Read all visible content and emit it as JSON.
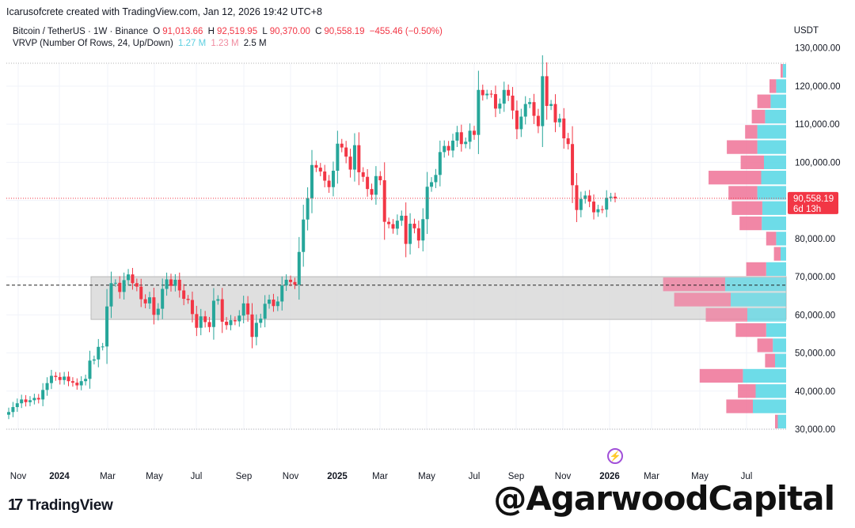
{
  "header": {
    "text": "Icarusofcrete created with TradingView.com, Jan 12, 2026 19:42 UTC+8"
  },
  "legend": {
    "symbol": "Bitcoin / TetherUS · 1W · Binance",
    "o_label": "O",
    "o": "91,013.66",
    "h_label": "H",
    "h": "92,519.95",
    "l_label": "L",
    "l": "90,370.00",
    "c_label": "C",
    "c": "90,558.19",
    "change": "−455.46 (−0.50%)",
    "vrvp": "VRVP (Number Of Rows, 24, Up/Down)",
    "vol_up": "1.27 M",
    "vol_down": "1.23 M",
    "vol_total": "2.5 M"
  },
  "axis_unit": "USDT",
  "price_tag": {
    "price": "90,558.19",
    "countdown": "6d 13h"
  },
  "branding": {
    "logo": "TradingView",
    "watermark": "@AgarwoodCapital"
  },
  "colors": {
    "up": "#26a69a",
    "down": "#f23645",
    "vp_up": "#5dd8e6",
    "vp_down": "#f07a9c",
    "box": "#d9d9d9"
  },
  "chart_data": {
    "type": "candlestick",
    "symbol": "Bitcoin / TetherUS",
    "interval": "1W",
    "ylim": [
      30000,
      126000
    ],
    "y_ticks": [
      30000,
      40000,
      50000,
      60000,
      70000,
      80000,
      90000,
      100000,
      110000,
      120000,
      130000
    ],
    "y_tick_labels": [
      "30,000.00",
      "40,000.00",
      "50,000.00",
      "60,000.00",
      "70,000.00",
      "80,000.00",
      "90,000.00",
      "100,000.00",
      "110,000.00",
      "120,000.00",
      "130,000.00"
    ],
    "x_labels": [
      "Nov",
      "2024",
      "Mar",
      "May",
      "Jul",
      "Sep",
      "Nov",
      "2025",
      "Mar",
      "May",
      "Jul",
      "Sep",
      "Nov",
      "2026",
      "Mar",
      "May",
      "Jul"
    ],
    "last_price": 90558.19,
    "dashed_level": 67800,
    "range_box": {
      "from_price": 58800,
      "to_price": 70000
    },
    "close_path": [
      34500,
      35800,
      36800,
      37800,
      37100,
      37600,
      38200,
      37800,
      40300,
      42100,
      44000,
      43700,
      42900,
      43800,
      42600,
      42200,
      41500,
      42600,
      43200,
      48000,
      48300,
      51600,
      51700,
      62200,
      68300,
      68400,
      66000,
      69100,
      70600,
      68300,
      67400,
      64100,
      63000,
      64600,
      60000,
      61600,
      66800,
      69300,
      67600,
      69200,
      66400,
      64200,
      63900,
      60200,
      56600,
      59600,
      58100,
      56800,
      63700,
      64100,
      58200,
      57300,
      58600,
      58300,
      59800,
      63000,
      60100,
      54200,
      57900,
      59000,
      62900,
      64000,
      62300,
      63500,
      67700,
      69200,
      68600,
      67900,
      76500,
      85000,
      90600,
      99300,
      98600,
      97600,
      95200,
      93500,
      97800,
      104900,
      103900,
      101500,
      98100,
      104500,
      97400,
      96200,
      93000,
      91500,
      96400,
      95300,
      84400,
      83800,
      82600,
      84700,
      86000,
      78600,
      83900,
      82700,
      79500,
      85100,
      93600,
      94800,
      96700,
      102700,
      104300,
      103100,
      105700,
      107900,
      104800,
      105400,
      108300,
      107200,
      119000,
      117600,
      118000,
      117900,
      114100,
      115400,
      119000,
      117500,
      113600,
      108700,
      112000,
      115300,
      115800,
      112200,
      109500,
      122600,
      114800,
      115300,
      110500,
      111500,
      106300,
      104800,
      94000,
      87500,
      90400,
      91300,
      89700,
      86900,
      87700,
      87600,
      90700,
      91000,
      90558
    ],
    "volume_profile": [
      {
        "price_from": 30000,
        "price_to": 34000,
        "up": 0.15,
        "down": 0.05
      },
      {
        "price_from": 34000,
        "price_to": 38000,
        "up": 0.6,
        "down": 0.48
      },
      {
        "price_from": 38000,
        "price_to": 42000,
        "up": 0.55,
        "down": 0.32
      },
      {
        "price_from": 42000,
        "price_to": 46000,
        "up": 0.78,
        "down": 0.78
      },
      {
        "price_from": 46000,
        "price_to": 50000,
        "up": 0.2,
        "down": 0.18
      },
      {
        "price_from": 50000,
        "price_to": 54000,
        "up": 0.24,
        "down": 0.28
      },
      {
        "price_from": 54000,
        "price_to": 58000,
        "up": 0.36,
        "down": 0.55
      },
      {
        "price_from": 58000,
        "price_to": 62000,
        "up": 0.7,
        "down": 0.75
      },
      {
        "price_from": 62000,
        "price_to": 66000,
        "up": 1.0,
        "down": 1.02
      },
      {
        "price_from": 66000,
        "price_to": 70000,
        "up": 1.1,
        "down": 1.12
      },
      {
        "price_from": 70000,
        "price_to": 74000,
        "up": 0.36,
        "down": 0.36
      },
      {
        "price_from": 74000,
        "price_to": 78000,
        "up": 0.1,
        "down": 0.12
      },
      {
        "price_from": 78000,
        "price_to": 82000,
        "up": 0.18,
        "down": 0.18
      },
      {
        "price_from": 82000,
        "price_to": 86000,
        "up": 0.44,
        "down": 0.4
      },
      {
        "price_from": 86000,
        "price_to": 90000,
        "up": 0.43,
        "down": 0.55
      },
      {
        "price_from": 90000,
        "price_to": 94000,
        "up": 0.52,
        "down": 0.52
      },
      {
        "price_from": 94000,
        "price_to": 98000,
        "up": 0.45,
        "down": 0.95
      },
      {
        "price_from": 98000,
        "price_to": 102000,
        "up": 0.4,
        "down": 0.42
      },
      {
        "price_from": 102000,
        "price_to": 106000,
        "up": 0.52,
        "down": 0.55
      },
      {
        "price_from": 106000,
        "price_to": 110000,
        "up": 0.52,
        "down": 0.22
      },
      {
        "price_from": 110000,
        "price_to": 114000,
        "up": 0.38,
        "down": 0.24
      },
      {
        "price_from": 114000,
        "price_to": 118000,
        "up": 0.28,
        "down": 0.24
      },
      {
        "price_from": 118000,
        "price_to": 122000,
        "up": 0.18,
        "down": 0.12
      },
      {
        "price_from": 122000,
        "price_to": 126000,
        "up": 0.06,
        "down": 0.04
      }
    ]
  }
}
